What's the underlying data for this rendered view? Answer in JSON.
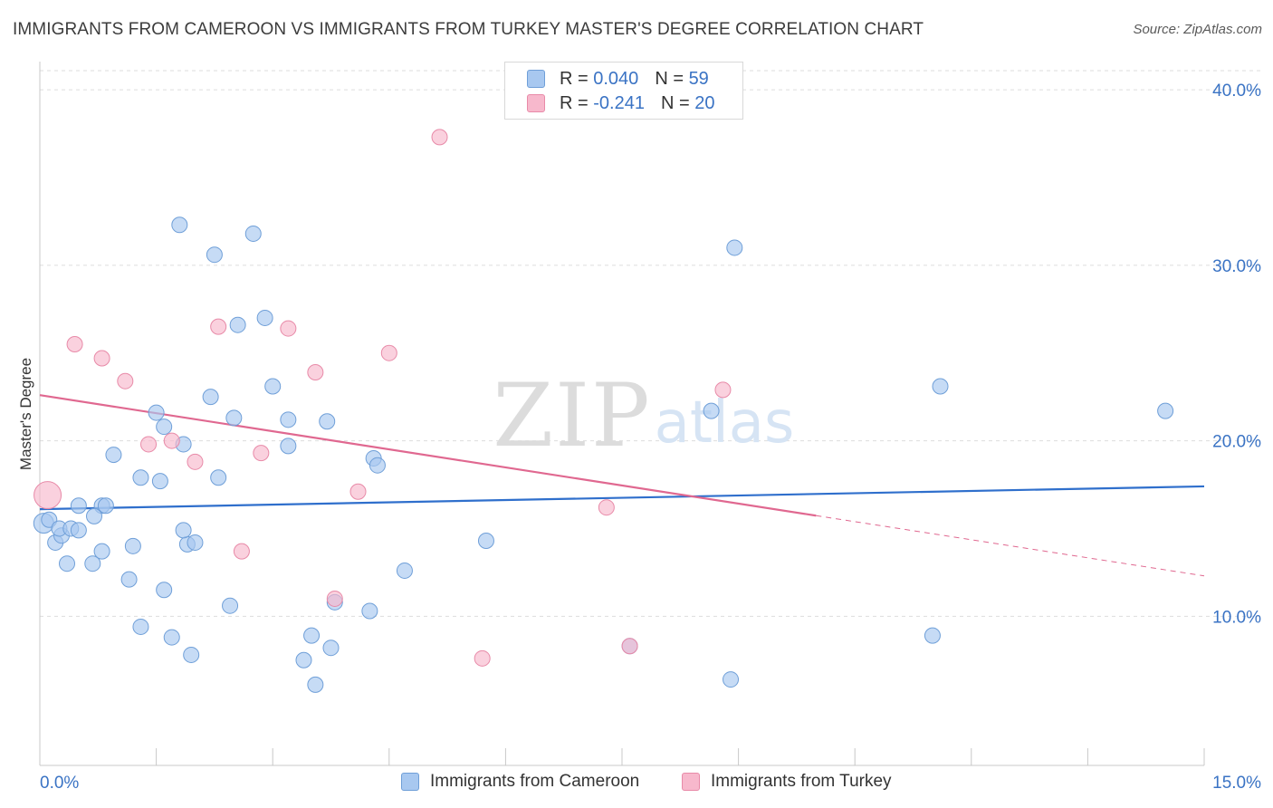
{
  "header": {
    "title": "IMMIGRANTS FROM CAMEROON VS IMMIGRANTS FROM TURKEY MASTER'S DEGREE CORRELATION CHART",
    "source": "Source: ZipAtlas.com"
  },
  "watermark": {
    "zip": "ZIP",
    "atlas": "atlas"
  },
  "legend": {
    "r_label": "R =",
    "n_label": "N =",
    "rows": [
      {
        "r": "0.040",
        "n": "59",
        "color": "#a8c8f0"
      },
      {
        "r": "-0.241",
        "n": "20",
        "color": "#f7b8cc"
      }
    ]
  },
  "chart_data": {
    "type": "scatter",
    "title": "IMMIGRANTS FROM CAMEROON VS IMMIGRANTS FROM TURKEY MASTER'S DEGREE CORRELATION CHART",
    "xlabel": "",
    "ylabel": "Master's Degree",
    "xlim": [
      0,
      15
    ],
    "ylim": [
      1.5,
      41.5
    ],
    "x_tick_labels": [
      "0.0%",
      "15.0%"
    ],
    "y_ticks": [
      10,
      20,
      30,
      40
    ],
    "y_tick_labels": [
      "10.0%",
      "20.0%",
      "30.0%",
      "40.0%"
    ],
    "grid": true,
    "series": [
      {
        "name": "Immigrants from Cameroon",
        "color": "#a8c8f0",
        "stroke": "#6f9fd8",
        "trend_color": "#2f6fcc",
        "trend": {
          "x": [
            0,
            15
          ],
          "y": [
            16.1,
            17.4
          ],
          "dashed_from": null
        },
        "points": [
          [
            0.05,
            15.3
          ],
          [
            0.12,
            15.5
          ],
          [
            0.2,
            14.2
          ],
          [
            0.28,
            14.6
          ],
          [
            0.25,
            15.0
          ],
          [
            0.4,
            15.0
          ],
          [
            0.5,
            14.9
          ],
          [
            0.35,
            13.0
          ],
          [
            0.8,
            13.7
          ],
          [
            0.8,
            16.3
          ],
          [
            0.85,
            16.3
          ],
          [
            0.7,
            15.7
          ],
          [
            0.5,
            16.3
          ],
          [
            0.68,
            13.0
          ],
          [
            1.2,
            14.0
          ],
          [
            1.15,
            12.1
          ],
          [
            1.3,
            9.4
          ],
          [
            1.6,
            11.5
          ],
          [
            1.7,
            8.8
          ],
          [
            1.95,
            7.8
          ],
          [
            1.9,
            14.1
          ],
          [
            2.0,
            14.2
          ],
          [
            1.85,
            14.9
          ],
          [
            1.3,
            17.9
          ],
          [
            1.55,
            17.7
          ],
          [
            2.3,
            17.9
          ],
          [
            1.5,
            21.6
          ],
          [
            1.6,
            20.8
          ],
          [
            1.85,
            19.8
          ],
          [
            2.2,
            22.5
          ],
          [
            2.5,
            21.3
          ],
          [
            2.25,
            30.6
          ],
          [
            2.55,
            26.6
          ],
          [
            2.9,
            27.0
          ],
          [
            2.75,
            31.8
          ],
          [
            3.0,
            23.1
          ],
          [
            3.2,
            19.7
          ],
          [
            3.2,
            21.2
          ],
          [
            3.7,
            21.1
          ],
          [
            4.3,
            19.0
          ],
          [
            4.35,
            18.6
          ],
          [
            3.5,
            8.9
          ],
          [
            3.55,
            6.1
          ],
          [
            3.4,
            7.5
          ],
          [
            3.75,
            8.2
          ],
          [
            3.8,
            10.8
          ],
          [
            4.25,
            10.3
          ],
          [
            4.7,
            12.6
          ],
          [
            5.75,
            14.3
          ],
          [
            1.8,
            32.3
          ],
          [
            2.45,
            10.6
          ],
          [
            7.6,
            8.3
          ],
          [
            8.65,
            21.7
          ],
          [
            8.9,
            6.4
          ],
          [
            8.95,
            31.0
          ],
          [
            11.5,
            8.9
          ],
          [
            11.6,
            23.1
          ],
          [
            14.5,
            21.7
          ],
          [
            0.95,
            19.2
          ]
        ]
      },
      {
        "name": "Immigrants from Turkey",
        "color": "#f7b8cc",
        "stroke": "#e88aa8",
        "trend_color": "#e06890",
        "trend": {
          "x": [
            0,
            15
          ],
          "y": [
            22.6,
            12.3
          ],
          "dashed_from": 10.0
        },
        "points": [
          [
            0.1,
            16.9
          ],
          [
            0.45,
            25.5
          ],
          [
            0.8,
            24.7
          ],
          [
            1.1,
            23.4
          ],
          [
            1.4,
            19.8
          ],
          [
            1.7,
            20.0
          ],
          [
            2.0,
            18.8
          ],
          [
            2.3,
            26.5
          ],
          [
            2.6,
            13.7
          ],
          [
            2.85,
            19.3
          ],
          [
            3.2,
            26.4
          ],
          [
            3.55,
            23.9
          ],
          [
            3.8,
            11.0
          ],
          [
            4.1,
            17.1
          ],
          [
            4.5,
            25.0
          ],
          [
            5.15,
            37.3
          ],
          [
            5.7,
            7.6
          ],
          [
            7.6,
            8.3
          ],
          [
            8.8,
            22.9
          ],
          [
            7.3,
            16.2
          ]
        ]
      }
    ]
  }
}
